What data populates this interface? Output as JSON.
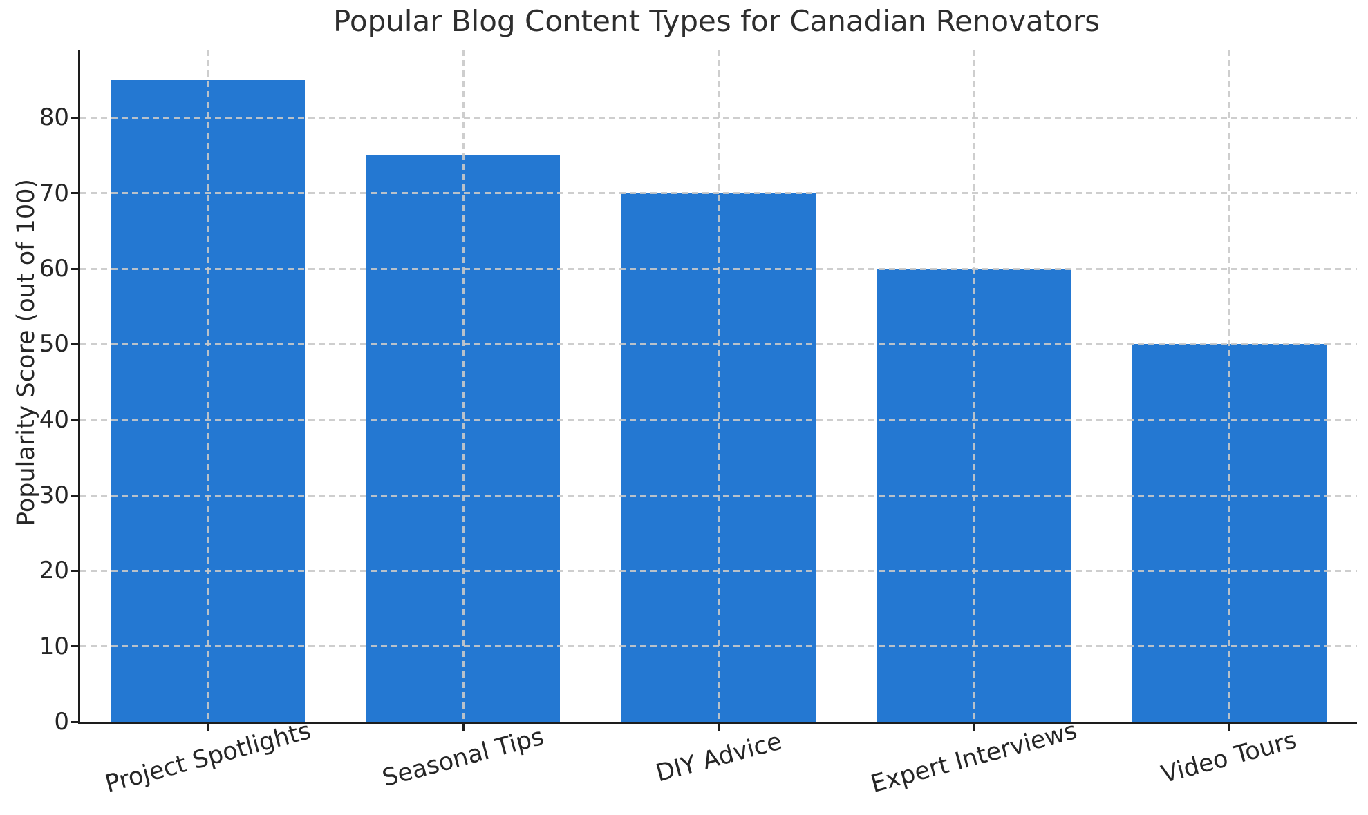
{
  "chart_data": {
    "type": "bar",
    "title": "Popular Blog Content Types for Canadian Renovators",
    "ylabel": "Popularity Score (out of 100)",
    "xlabel": "",
    "categories": [
      "Project Spotlights",
      "Seasonal Tips",
      "DIY Advice",
      "Expert Interviews",
      "Video Tours"
    ],
    "values": [
      85,
      75,
      70,
      60,
      50
    ],
    "ylim": [
      0,
      89
    ],
    "yticks": [
      0,
      10,
      20,
      30,
      40,
      50,
      60,
      70,
      80
    ],
    "grid": "dashed gridlines on both axes, drawn above bars",
    "legend_position": "none",
    "bar_color": "#2478d2",
    "grid_color": "#c9c9c9",
    "axis_color": "#1d1d1d",
    "text_color": "#262626"
  }
}
